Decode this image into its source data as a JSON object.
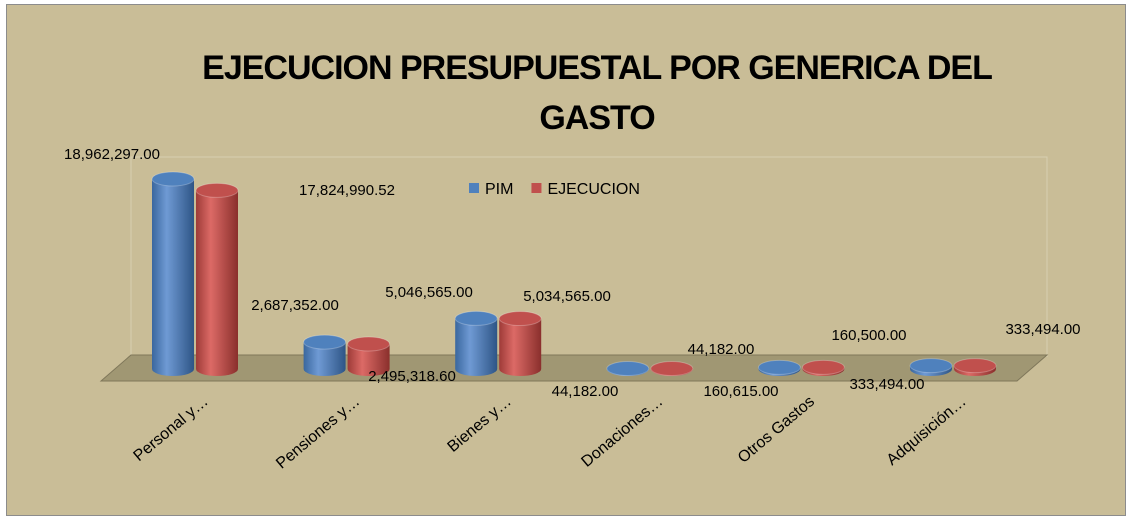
{
  "chart_data": {
    "type": "bar3d",
    "title": "EJECUCION PRESUPUESTAL POR GENERICA DEL GASTO",
    "categories": [
      "Personal y…",
      "Pensiones y…",
      "Bienes y…",
      "Donaciones…",
      "Otros Gastos",
      "Adquisición…"
    ],
    "series": [
      {
        "name": "PIM",
        "color": "#4f81bd",
        "values": [
          18962297,
          2687352,
          5046565,
          44182,
          160615,
          333494
        ],
        "value_labels": [
          "18,962,297.00",
          "2,687,352.00",
          "5,046,565.00",
          "44,182.00",
          "160,615.00",
          "333,494.00"
        ]
      },
      {
        "name": "EJECUCION",
        "color": "#c0504d",
        "values": [
          17824990.52,
          2495318.6,
          5034565,
          44182,
          160500,
          333494
        ],
        "value_labels": [
          "17,824,990.52",
          "2,495,318.60",
          "5,034,565.00",
          "44,182.00",
          "160,500.00",
          "333,494.00"
        ]
      }
    ],
    "legend": "top"
  }
}
